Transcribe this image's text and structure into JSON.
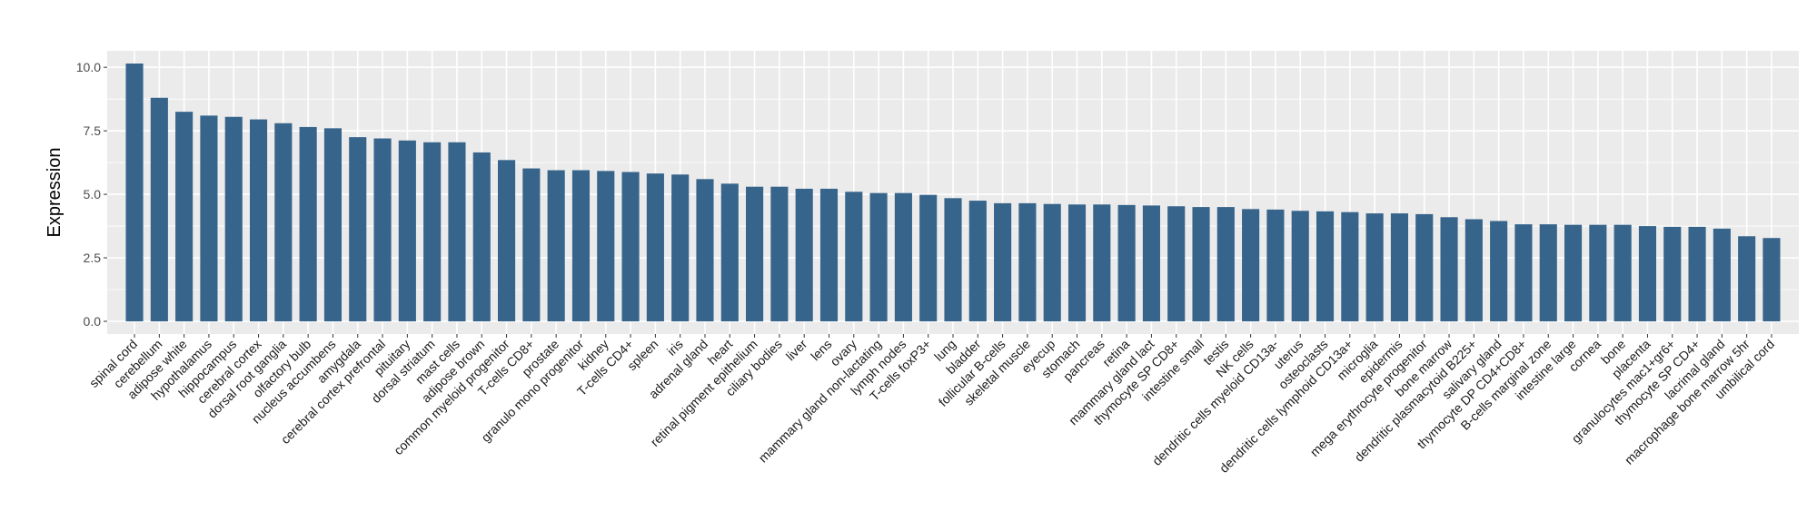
{
  "chart_data": {
    "type": "bar",
    "title": "",
    "xlabel": "",
    "ylabel": "Expression",
    "ylim": [
      -0.5,
      10.65
    ],
    "yticks": [
      0,
      2.5,
      5,
      7.5,
      10
    ],
    "ytick_labels": [
      "0.0",
      "2.5",
      "5.0",
      "7.5",
      "10.0"
    ],
    "grid": true,
    "legend": "none",
    "bar_color": "#36648B",
    "panel_color": "#EBEBEB",
    "categories": [
      "spinal cord",
      "cerebellum",
      "adipose white",
      "hypothalamus",
      "hippocampus",
      "cerebral cortex",
      "dorsal root ganglia",
      "olfactory bulb",
      "nucleus accumbens",
      "amygdala",
      "cerebral cortex prefrontal",
      "pituitary",
      "dorsal striatum",
      "mast cells",
      "adipose brown",
      "common myeloid progenitor",
      "T-cells CD8+",
      "prostate",
      "granulo mono progenitor",
      "kidney",
      "T-cells CD4+",
      "spleen",
      "iris",
      "adrenal gland",
      "heart",
      "retinal pigment epithelium",
      "ciliary bodies",
      "liver",
      "lens",
      "ovary",
      "mammary gland non-lactating",
      "lymph nodes",
      "T-cells foxP3+",
      "lung",
      "bladder",
      "follicular B-cells",
      "skeletal muscle",
      "eyecup",
      "stomach",
      "pancreas",
      "retina",
      "mammary gland  lact",
      "thymocyte SP CD8+",
      "intestine small",
      "testis",
      "NK cells",
      "dendritic cells myeloid CD13a-",
      "uterus",
      "osteoclasts",
      "dendritic cells lymphoid CD13a+",
      "microglia",
      "epidermis",
      "mega erythrocyte progenitor",
      "bone marrow",
      "dendritic plasmacytoid B225+",
      "salivary gland",
      "thymocyte DP CD4+CD8+",
      "B-cells marginal zone",
      "intestine large",
      "cornea",
      "bone",
      "placenta",
      "granulocytes mac1+gr6+",
      "thymocyte SP CD4+",
      "lacrimal gland",
      "macrophage bone marrow 5hr",
      "umbilical cord"
    ],
    "values": [
      10.15,
      8.8,
      8.25,
      8.1,
      8.05,
      7.95,
      7.8,
      7.65,
      7.6,
      7.25,
      7.2,
      7.12,
      7.05,
      7.05,
      6.65,
      6.35,
      6.02,
      5.95,
      5.95,
      5.92,
      5.88,
      5.82,
      5.78,
      5.6,
      5.42,
      5.3,
      5.3,
      5.22,
      5.22,
      5.1,
      5.05,
      5.05,
      4.98,
      4.85,
      4.75,
      4.65,
      4.65,
      4.62,
      4.6,
      4.6,
      4.58,
      4.56,
      4.53,
      4.5,
      4.5,
      4.42,
      4.4,
      4.35,
      4.33,
      4.3,
      4.25,
      4.25,
      4.22,
      4.1,
      4.02,
      3.95,
      3.82,
      3.82,
      3.8,
      3.8,
      3.8,
      3.75,
      3.72,
      3.72,
      3.65,
      3.35,
      3.28
    ]
  }
}
